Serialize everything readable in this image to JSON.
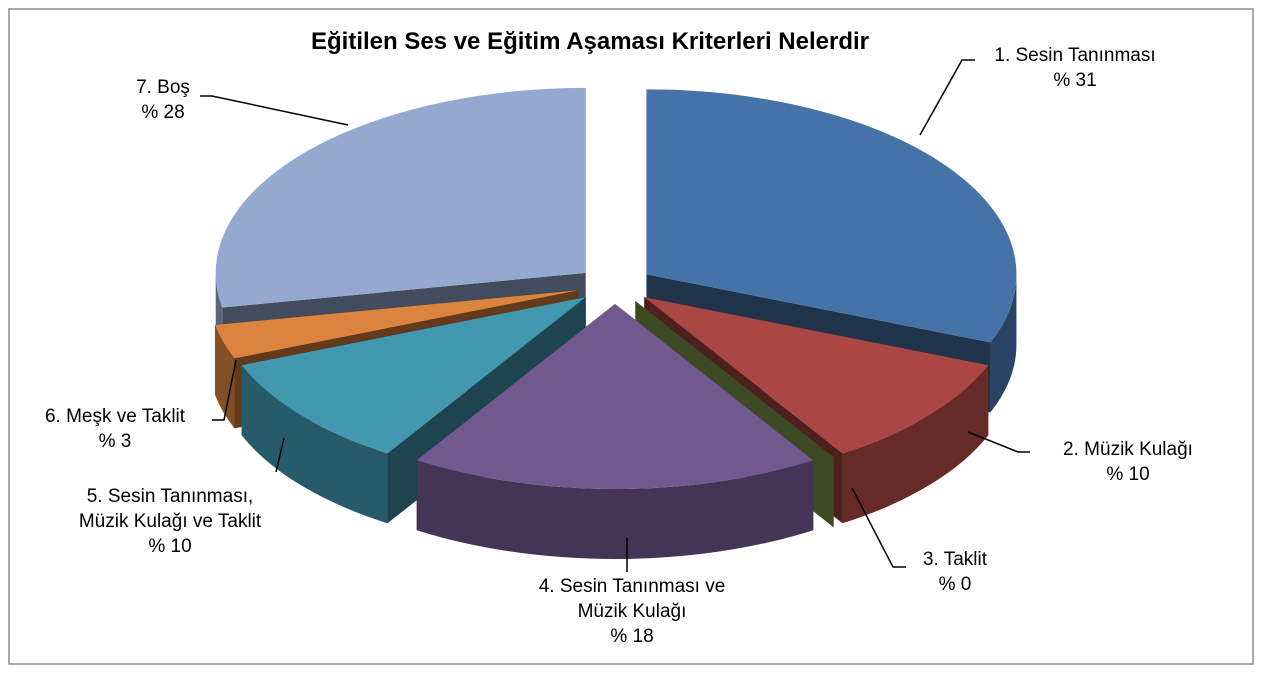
{
  "chart_data": {
    "type": "pie",
    "title": "Eğitilen Ses ve Eğitim Aşaması Kriterleri Nelerdir",
    "categories": [
      "1. Sesin Tanınması",
      "2. Müzik Kulağı",
      "3. Taklit",
      "4. Sesin Tanınması ve Müzik Kulağı",
      "5. Sesin Tanınması, Müzik Kulağı ve Taklit",
      "6. Meşk ve Taklit",
      "7. Boş"
    ],
    "values": [
      31,
      10,
      0,
      18,
      10,
      3,
      28
    ],
    "value_labels": [
      "% 31",
      "% 10",
      "% 0",
      "% 18",
      "% 10",
      "% 3",
      "% 28"
    ],
    "colors": [
      "#4572a7",
      "#aa4643",
      "#89a54e",
      "#71588f",
      "#4198af",
      "#db843d",
      "#93a9cf"
    ]
  }
}
